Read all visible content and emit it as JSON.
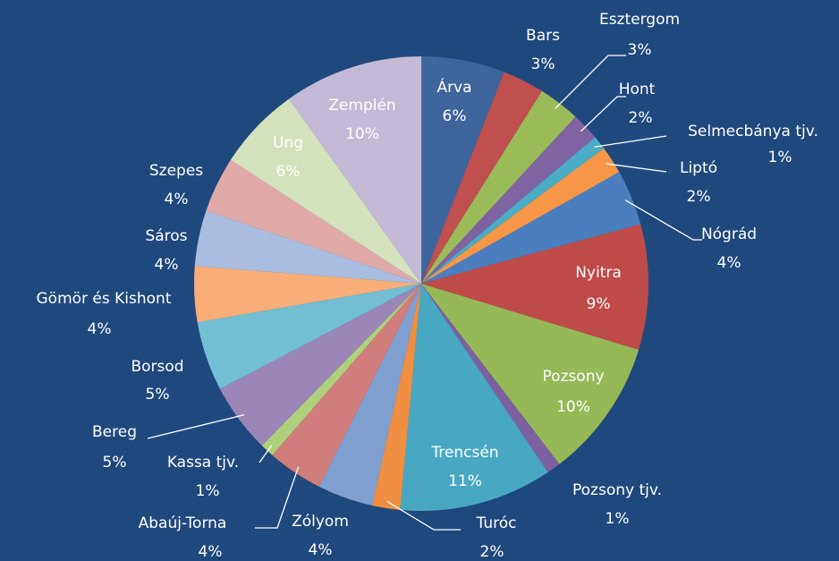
{
  "chart_data": {
    "type": "pie",
    "categories": [
      "Árva",
      "Bars",
      "Esztergom",
      "Hont",
      "Selmecbánya tjv.",
      "Liptó",
      "Nógrád",
      "Nyitra",
      "Pozsony",
      "Pozsony tjv.",
      "Trencsén",
      "Turóc",
      "Zólyom",
      "Abaúj-Torna",
      "Kassa tjv.",
      "Bereg",
      "Borsod",
      "Gömör és Kishont",
      "Sáros",
      "Szepes",
      "Ung",
      "Zemplén"
    ],
    "values": [
      6,
      3,
      3,
      2,
      1,
      2,
      4,
      9,
      10,
      1,
      11,
      2,
      4,
      4,
      1,
      5,
      5,
      4,
      4,
      4,
      6,
      10
    ],
    "value_labels": [
      "6%",
      "3%",
      "3%",
      "2%",
      "1%",
      "2%",
      "4%",
      "9%",
      "10%",
      "1%",
      "11%",
      "2%",
      "4%",
      "4%",
      "1%",
      "5%",
      "5%",
      "4%",
      "4%",
      "4%",
      "6%",
      "10%"
    ],
    "colors": [
      "#3e659c",
      "#c0504d",
      "#9bbb59",
      "#8064a2",
      "#4bacc6",
      "#f79646",
      "#4a7ebf",
      "#bf4b48",
      "#97b857",
      "#7c61a0",
      "#48a8c2",
      "#f08e42",
      "#7f9fcf",
      "#d07d7b",
      "#afd07a",
      "#9b86b8",
      "#72bed3",
      "#f9ad77",
      "#a9bde0",
      "#e0aaa9",
      "#d4e2bb",
      "#c4b9d6"
    ]
  }
}
